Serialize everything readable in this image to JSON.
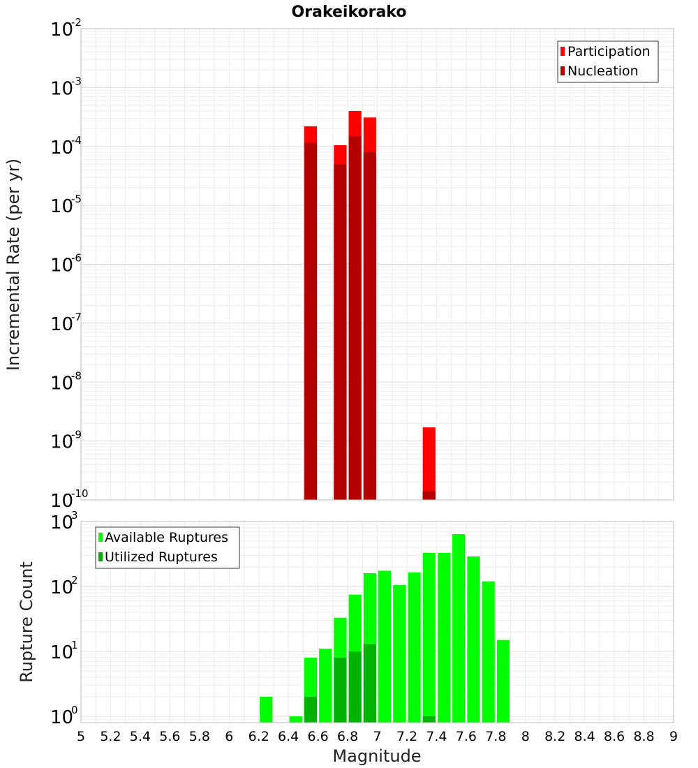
{
  "chart_data": [
    {
      "type": "bar",
      "title": "Orakeikorako",
      "xlabel": "Magnitude",
      "ylabel": "Incremental Rate (per yr)",
      "yscale": "log",
      "xlim": [
        5,
        9
      ],
      "ylim": [
        1e-10,
        0.01
      ],
      "bin_width": 0.1,
      "y_tick_exponents": [
        "-10",
        "-9",
        "-8",
        "-7",
        "-6",
        "-5",
        "-4",
        "-3",
        "-2"
      ],
      "grid": true,
      "legend": "top-right",
      "series": [
        {
          "name": "Participation",
          "color": "#ff0000",
          "x": [
            6.55,
            6.75,
            6.85,
            6.95,
            7.35
          ],
          "values": [
            0.00022,
            0.000105,
            0.0004,
            0.00031,
            1.7e-09
          ]
        },
        {
          "name": "Nucleation",
          "color": "#b30000",
          "x": [
            6.55,
            6.75,
            6.85,
            6.95,
            7.35
          ],
          "values": [
            0.000115,
            5e-05,
            0.00015,
            8e-05,
            1.4e-10
          ]
        }
      ]
    },
    {
      "type": "bar",
      "title": "",
      "xlabel": "Magnitude",
      "ylabel": "Rupture Count",
      "yscale": "log",
      "xlim": [
        5,
        9
      ],
      "ylim": [
        0.8,
        1000
      ],
      "bin_width": 0.1,
      "x_ticks": [
        "5",
        "5.2",
        "5.4",
        "5.6",
        "5.8",
        "6",
        "6.2",
        "6.4",
        "6.6",
        "6.8",
        "7",
        "7.2",
        "7.4",
        "7.6",
        "7.8",
        "8",
        "8.2",
        "8.4",
        "8.6",
        "8.8",
        "9"
      ],
      "y_tick_exponents": [
        "0",
        "1",
        "2",
        "3"
      ],
      "grid": true,
      "legend": "top-left",
      "series": [
        {
          "name": "Available Ruptures",
          "color": "#00ff00",
          "x": [
            6.25,
            6.45,
            6.55,
            6.65,
            6.75,
            6.85,
            6.95,
            7.05,
            7.15,
            7.25,
            7.35,
            7.45,
            7.55,
            7.65,
            7.75,
            7.85
          ],
          "values": [
            2,
            1,
            8,
            11,
            33,
            75,
            160,
            175,
            105,
            165,
            330,
            330,
            640,
            290,
            120,
            15
          ]
        },
        {
          "name": "Utilized Ruptures",
          "color": "#00b300",
          "x": [
            6.55,
            6.75,
            6.85,
            6.95,
            7.35
          ],
          "values": [
            2,
            8,
            10,
            13,
            1
          ]
        }
      ]
    }
  ]
}
